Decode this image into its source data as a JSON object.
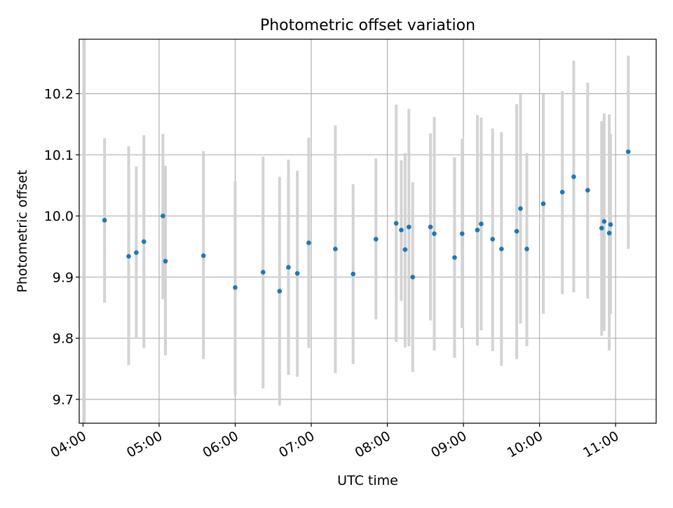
{
  "chart_data": {
    "type": "scatter",
    "title": "Photometric offset variation",
    "xlabel": "UTC time",
    "ylabel": "Photometric offset",
    "x_tick_labels": [
      "04:00",
      "05:00",
      "06:00",
      "07:00",
      "08:00",
      "09:00",
      "10:00",
      "11:00"
    ],
    "y_tick_labels": [
      "9.7",
      "9.8",
      "9.9",
      "10.0",
      "10.1",
      "10.2"
    ],
    "xlim": [
      "03:57",
      "11:32"
    ],
    "ylim": [
      9.661,
      10.289
    ],
    "grid": true,
    "error_bar_color": "#d3d3d3",
    "point_color": "#1f77b4",
    "series": [
      {
        "x": [
          "04:01",
          "04:17",
          "04:36",
          "04:42",
          "04:48",
          "05:03",
          "05:05",
          "05:35",
          "06:00",
          "06:22",
          "06:35",
          "06:42",
          "06:49",
          "06:58",
          "07:19",
          "07:33",
          "07:51",
          "08:07",
          "08:11",
          "08:14",
          "08:17",
          "08:20",
          "08:34",
          "08:37",
          "08:53",
          "08:59",
          "09:11",
          "09:14",
          "09:23",
          "09:30",
          "09:42",
          "09:45",
          "09:50",
          "10:03",
          "10:18",
          "10:27",
          "10:38",
          "10:49",
          "10:51",
          "10:55",
          "10:56",
          "11:10"
        ],
        "y": [
          null,
          9.993,
          9.934,
          9.94,
          9.958,
          10.0,
          9.926,
          9.935,
          9.883,
          9.908,
          9.877,
          9.916,
          9.906,
          9.956,
          9.946,
          9.905,
          9.962,
          9.988,
          9.977,
          9.945,
          9.982,
          9.9,
          9.982,
          9.971,
          9.932,
          9.971,
          9.977,
          9.987,
          9.962,
          9.946,
          9.975,
          10.012,
          9.946,
          10.02,
          10.039,
          10.064,
          10.042,
          9.98,
          9.991,
          9.972,
          9.986,
          10.105
        ],
        "err_low": [
          null,
          9.858,
          9.756,
          9.8,
          9.784,
          9.864,
          9.772,
          9.766,
          9.707,
          9.718,
          9.69,
          9.74,
          9.737,
          9.784,
          9.743,
          9.758,
          9.831,
          9.794,
          9.861,
          9.785,
          9.787,
          9.745,
          9.829,
          9.78,
          9.768,
          9.817,
          9.788,
          9.813,
          9.779,
          9.755,
          9.766,
          9.824,
          9.787,
          9.84,
          9.872,
          9.875,
          9.865,
          9.804,
          9.812,
          9.78,
          9.84,
          9.946
        ],
        "err_high": [
          10.3,
          10.127,
          10.114,
          10.081,
          10.132,
          10.134,
          10.082,
          10.106,
          10.057,
          10.097,
          10.064,
          10.092,
          10.074,
          10.128,
          10.148,
          10.052,
          10.094,
          10.182,
          10.091,
          10.103,
          10.175,
          10.055,
          10.135,
          10.162,
          10.096,
          10.126,
          10.165,
          10.161,
          10.143,
          10.137,
          10.183,
          10.2,
          10.103,
          10.199,
          10.204,
          10.254,
          10.218,
          10.155,
          10.168,
          10.166,
          10.134,
          10.262
        ]
      }
    ]
  }
}
